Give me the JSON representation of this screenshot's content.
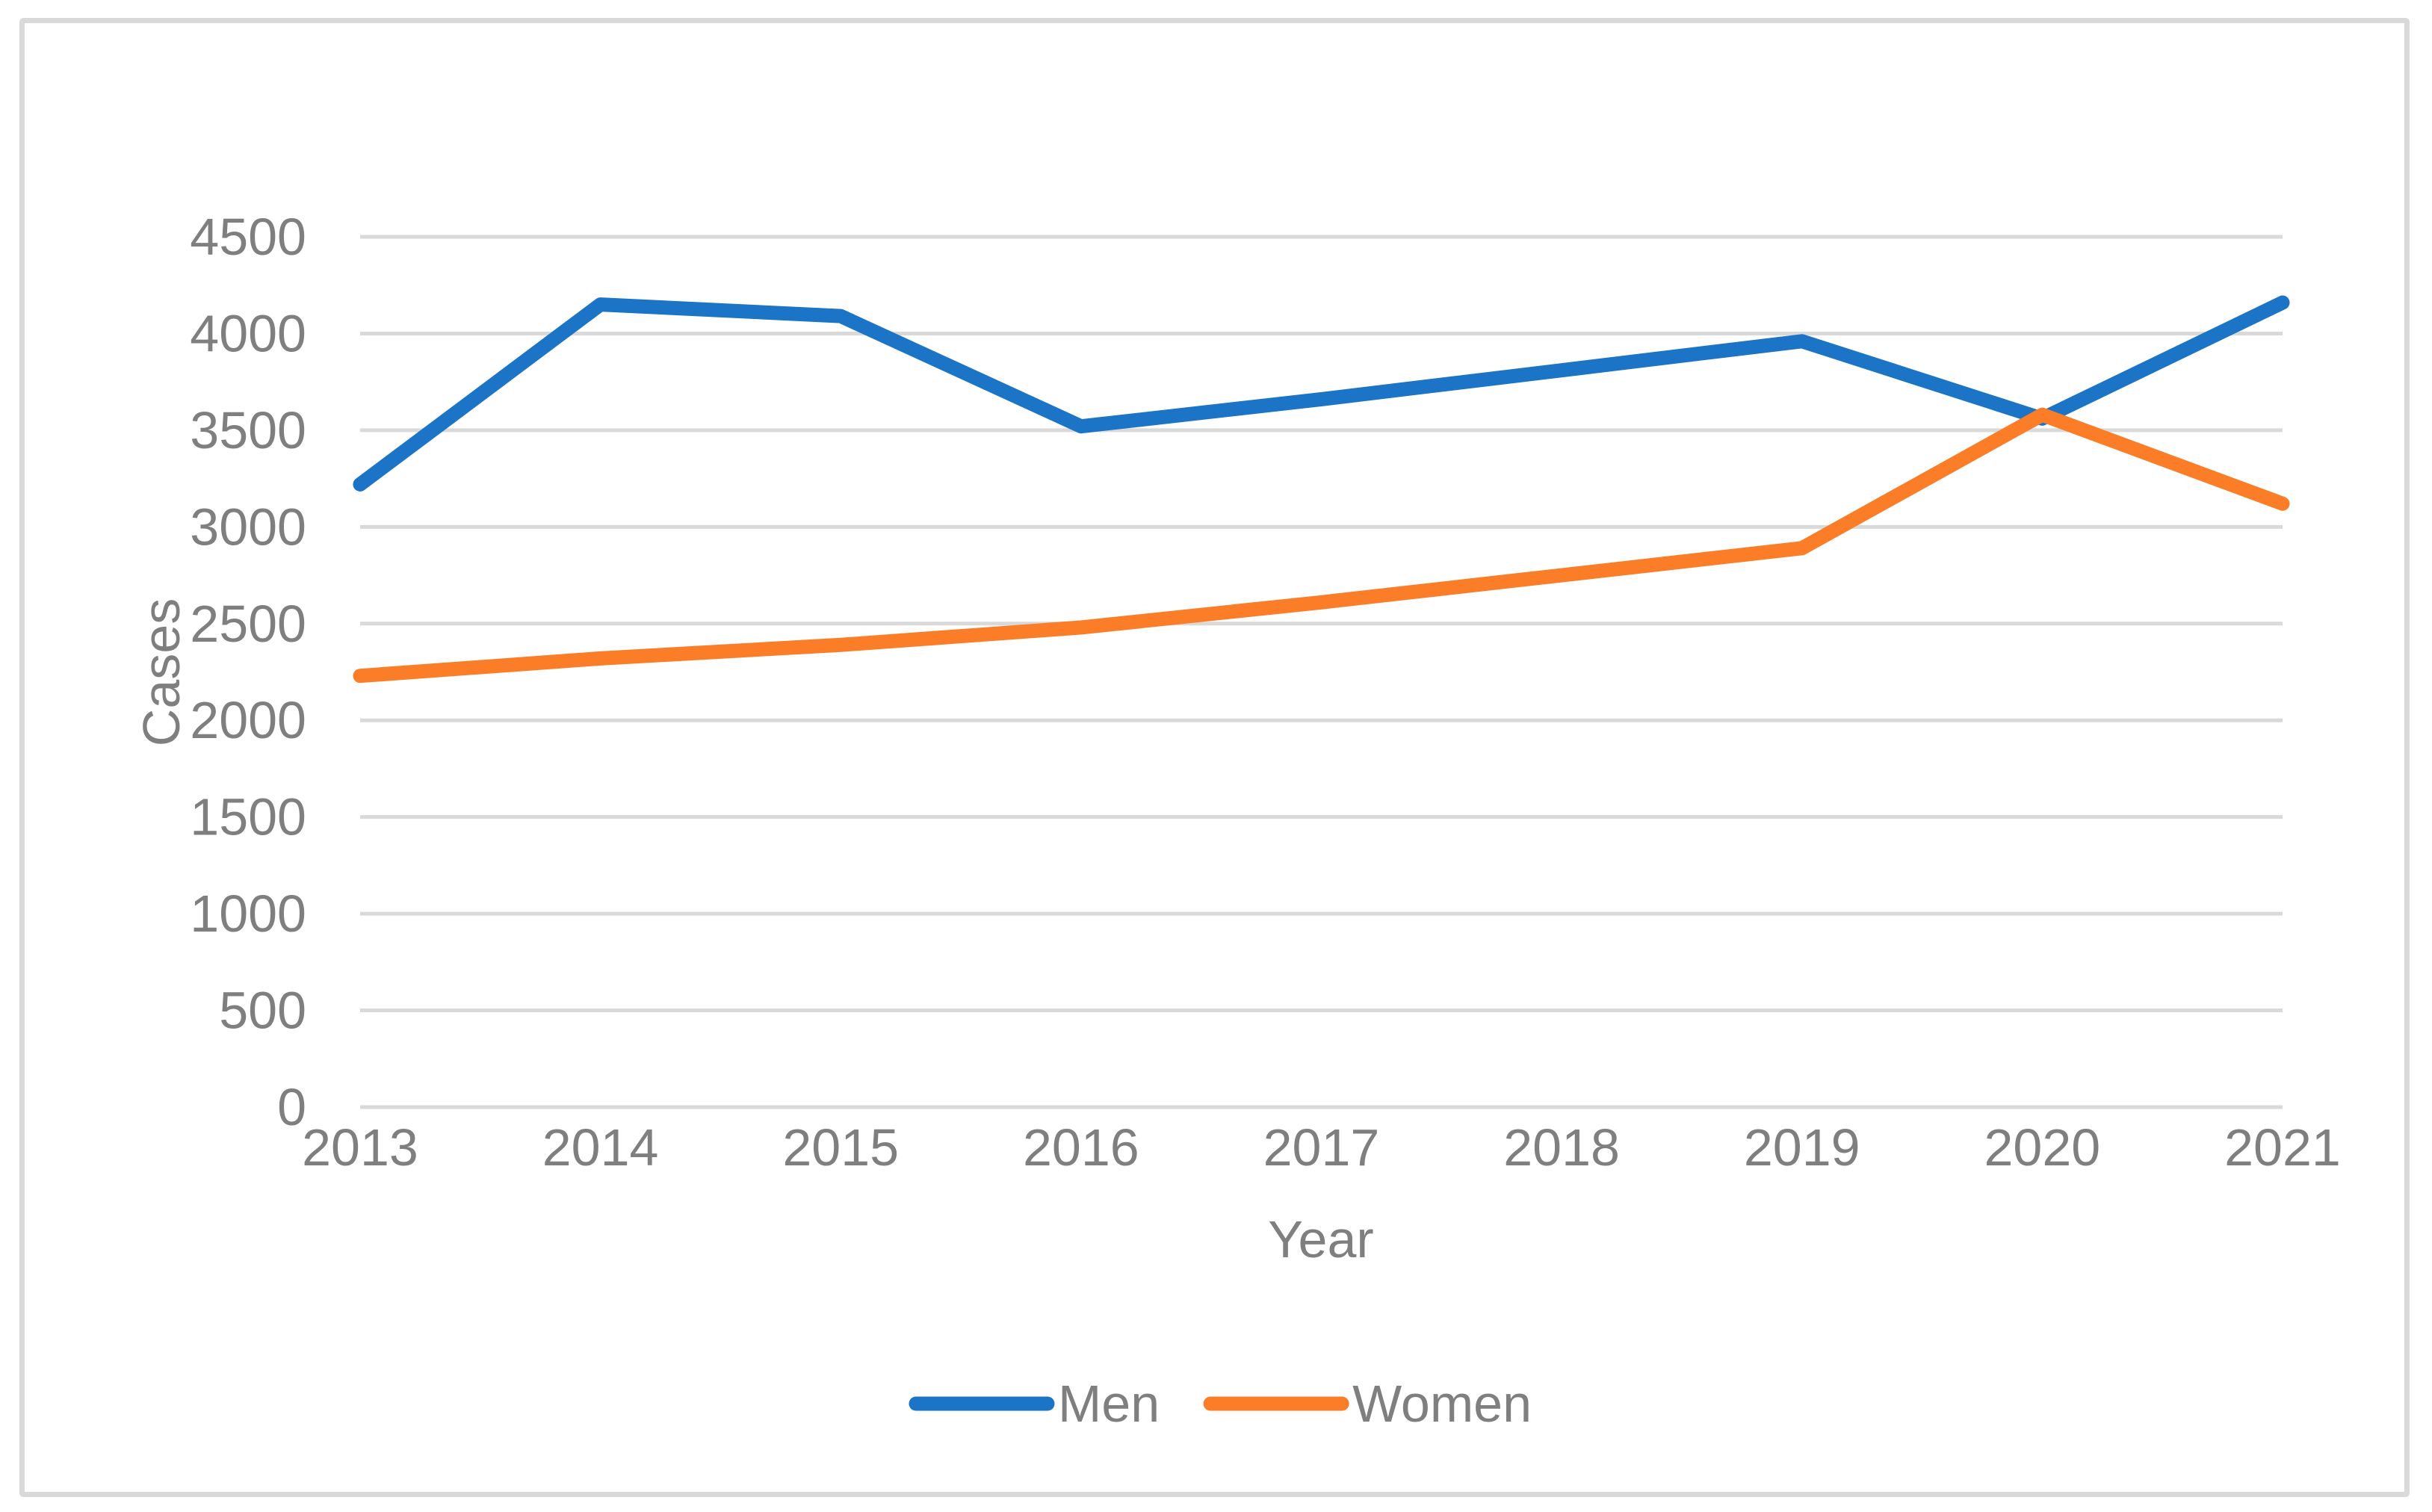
{
  "chart_data": {
    "type": "line",
    "title": "",
    "xlabel": "Year",
    "ylabel": "Cases",
    "categories": [
      "2013",
      "2014",
      "2015",
      "2016",
      "2017",
      "2018",
      "2019",
      "2020",
      "2021"
    ],
    "series": [
      {
        "name": "Men",
        "color": "#1B74C5",
        "values": [
          3220,
          4150,
          4090,
          3520,
          3660,
          3810,
          3960,
          3560,
          4160
        ]
      },
      {
        "name": "Women",
        "color": "#FB7D28",
        "values": [
          2230,
          2320,
          2390,
          2480,
          2610,
          2750,
          2890,
          3580,
          3120
        ]
      }
    ],
    "ylim": [
      0,
      4500
    ],
    "ytick_step": 500,
    "grid": "horizontal",
    "legend_position": "bottom"
  },
  "colors": {
    "background": "#FFFFFF",
    "grid": "#D9D9D9",
    "border": "#D9D9D9",
    "text": "#7F7F7F"
  }
}
